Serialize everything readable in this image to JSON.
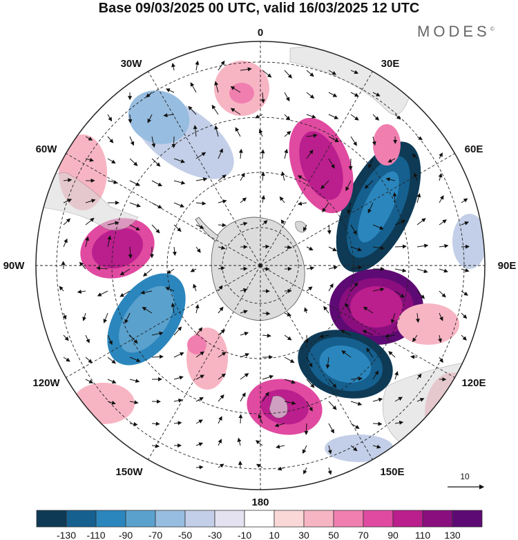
{
  "title": "Base 09/03/2025 00 UTC, valid 16/03/2025 12 UTC",
  "brand": "MODES",
  "brand_mark": "©",
  "map": {
    "projection": "South Polar Stereographic",
    "longitude_labels": {
      "0": "0",
      "30E": "30E",
      "60E": "60E",
      "90E": "90E",
      "120E": "120E",
      "150E": "150E",
      "180": "180",
      "150W": "150W",
      "120W": "120W",
      "90W": "90W",
      "60W": "60W",
      "30W": "30W"
    },
    "reference_vector_label": "10"
  },
  "colorbar": {
    "tick_labels": [
      "-130",
      "-110",
      "-90",
      "-70",
      "-50",
      "-30",
      "-10",
      "10",
      "30",
      "50",
      "70",
      "90",
      "110",
      "130"
    ],
    "colors": [
      "#0e3a55",
      "#15608f",
      "#2b86bd",
      "#5aa1cd",
      "#97bde0",
      "#c3cfe8",
      "#e4e1f0",
      "#ffffff",
      "#fbd8d8",
      "#f7b5c3",
      "#f07fb0",
      "#e04aa0",
      "#bb1e8d",
      "#8a0e7e",
      "#5e0a74"
    ]
  }
}
